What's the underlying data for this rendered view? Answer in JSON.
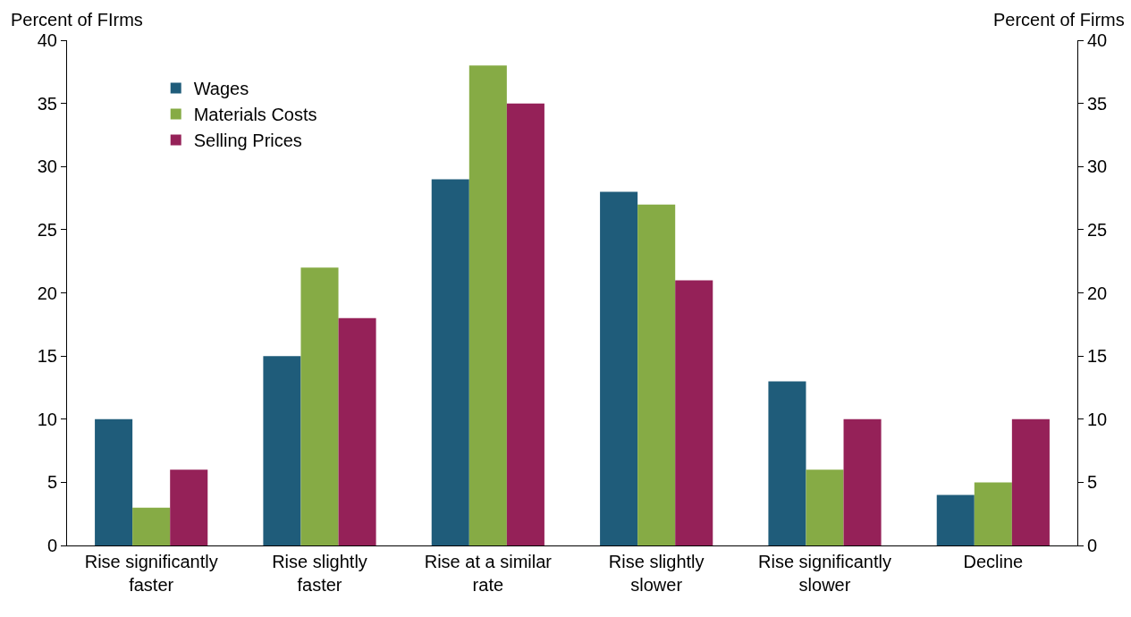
{
  "chart_data": {
    "type": "bar",
    "ylabel": "Percent of FIrms",
    "y2label": "Percent of Firms",
    "categories": [
      "Rise significantly faster",
      "Rise slightly faster",
      "Rise at a similar rate",
      "Rise slightly slower",
      "Rise significantly slower",
      "Decline"
    ],
    "series": [
      {
        "name": "Wages",
        "color": "#1f5c7a",
        "values": [
          10,
          15,
          29,
          28,
          13,
          4
        ]
      },
      {
        "name": "Materials Costs",
        "color": "#86ab45",
        "values": [
          3,
          22,
          38,
          27,
          6,
          5
        ]
      },
      {
        "name": "Selling Prices",
        "color": "#952158",
        "values": [
          6,
          18,
          35,
          21,
          10,
          10
        ]
      }
    ],
    "ylim": [
      0,
      40
    ],
    "yticks": [
      0,
      5,
      10,
      15,
      20,
      25,
      30,
      35,
      40
    ],
    "y2lim": [
      0,
      40
    ],
    "y2ticks": [
      0,
      5,
      10,
      15,
      20,
      25,
      30,
      35,
      40
    ],
    "legend": "top left"
  }
}
